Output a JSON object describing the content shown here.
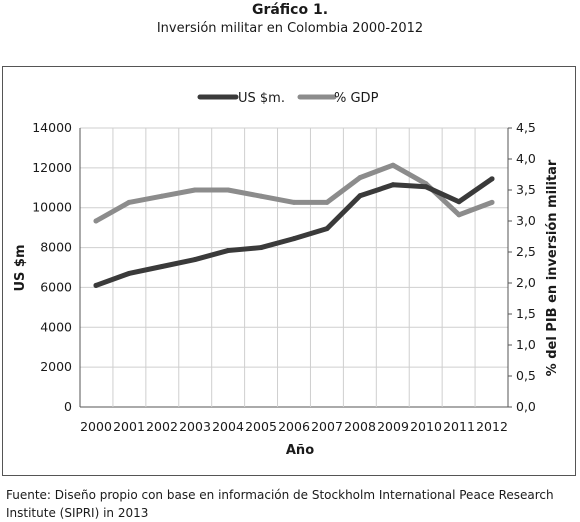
{
  "header": {
    "title": "Gráfico 1.",
    "subtitle": "Inversión militar en Colombia 2000-2012"
  },
  "footer": {
    "source": "Fuente: Diseño propio con base en información de Stockholm International Peace Research Institute (SIPRI) in 2013"
  },
  "colors": {
    "us_series": "#3a3a3a",
    "gdp_series": "#8c8c8c",
    "grid": "#cfcfcf",
    "axis": "#555555"
  },
  "chart_data": {
    "type": "line",
    "title": "Inversión militar en Colombia 2000-2012",
    "xlabel": "Año",
    "ylabel": "US $m",
    "y2label": "% del PIB en inversión militar",
    "categories": [
      "2000",
      "2001",
      "2002",
      "2003",
      "2004",
      "2005",
      "2006",
      "2007",
      "2008",
      "2009",
      "2010",
      "2011",
      "2012"
    ],
    "ylim": [
      0,
      14000
    ],
    "y_ticks": [
      "0",
      "2000",
      "4000",
      "6000",
      "8000",
      "10000",
      "12000",
      "14000"
    ],
    "y2lim": [
      0,
      4.5
    ],
    "y2_ticks": [
      "0,0",
      "0,5",
      "1,0",
      "1,5",
      "2,0",
      "2,5",
      "3,0",
      "3,5",
      "4,0",
      "4,5"
    ],
    "grid": true,
    "legend_position": "top",
    "series": [
      {
        "name": "US $m.",
        "axis": "left",
        "values": [
          6100,
          6700,
          7050,
          7400,
          7850,
          8000,
          8450,
          8950,
          10600,
          11150,
          11050,
          10300,
          11450
        ]
      },
      {
        "name": "% GDP",
        "axis": "right",
        "values": [
          3.0,
          3.3,
          3.4,
          3.5,
          3.5,
          3.4,
          3.3,
          3.3,
          3.7,
          3.9,
          3.6,
          3.1,
          3.3
        ]
      }
    ]
  }
}
